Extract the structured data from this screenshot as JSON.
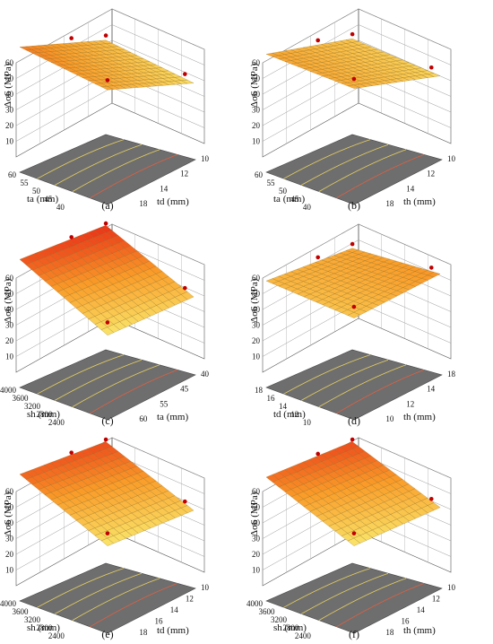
{
  "figure": {
    "panels": [
      {
        "label": "(a)",
        "zlabel": "Δσ6 (MPa)",
        "x_name": "ta",
        "y_name": "td",
        "x_ticks": [
          "60",
          "55",
          "50",
          "45",
          "40"
        ],
        "y_ticks": [
          "10",
          "12",
          "14",
          "18"
        ]
      },
      {
        "label": "(b)",
        "zlabel": "Δσ6 (MPa)",
        "x_name": "ta",
        "y_name": "th",
        "x_ticks": [
          "60",
          "55",
          "50",
          "45",
          "40"
        ],
        "y_ticks": [
          "10",
          "12",
          "14",
          "18"
        ]
      },
      {
        "label": "(c)",
        "zlabel": "Δσ6 (MPa)",
        "x_name": "sh",
        "y_name": "ta",
        "x_ticks": [
          "4000",
          "3600",
          "3200",
          "2800",
          "2400"
        ],
        "y_ticks": [
          "40",
          "45",
          "55",
          "60"
        ]
      },
      {
        "label": "(d)",
        "zlabel": "Δσ6 (MPa)",
        "x_name": "td",
        "y_name": "th",
        "x_ticks": [
          "18",
          "16",
          "14",
          "12",
          "10"
        ],
        "y_ticks": [
          "18",
          "14",
          "12",
          "10"
        ]
      },
      {
        "label": "(e)",
        "zlabel": "Δσ6 (MPa)",
        "x_name": "sh",
        "y_name": "td",
        "x_ticks": [
          "4000",
          "3600",
          "3200",
          "2800",
          "2400"
        ],
        "y_ticks": [
          "10",
          "12",
          "14",
          "16",
          "18"
        ]
      },
      {
        "label": "(f)",
        "zlabel": "Δσ6 (MPa)",
        "x_name": "sh",
        "y_name": "th",
        "x_ticks": [
          "4000",
          "3600",
          "3200",
          "2800",
          "2400"
        ],
        "y_ticks": [
          "10",
          "12",
          "14",
          "16",
          "18"
        ]
      }
    ]
  },
  "chart_data": [
    {
      "type": "surface",
      "label": "(a)",
      "zlabel": "Δσ6 (MPa)",
      "xlabel": "ta (mm)",
      "ylabel": "td (mm)",
      "xlim": [
        40,
        60
      ],
      "ylim": [
        10,
        18
      ],
      "zlim": [
        0,
        60
      ],
      "z_ticks": [
        10,
        20,
        30,
        40,
        50,
        60
      ],
      "corner_values": {
        "ta60_td10": 38,
        "ta60_td18": 24,
        "ta40_td10": 30,
        "ta40_td18": 16
      },
      "design_points_z": [
        42,
        37,
        28,
        20
      ]
    },
    {
      "type": "surface",
      "label": "(b)",
      "zlabel": "Δσ6 (MPa)",
      "xlabel": "ta (mm)",
      "ylabel": "th (mm)",
      "xlim": [
        40,
        60
      ],
      "ylim": [
        10,
        18
      ],
      "zlim": [
        0,
        60
      ],
      "z_ticks": [
        10,
        20,
        30,
        40,
        50,
        60
      ],
      "corner_values": {
        "ta60_th10": 30,
        "ta60_th18": 22,
        "ta40_th10": 28,
        "ta40_th18": 18
      },
      "design_points_z": [
        33,
        31,
        26,
        22
      ]
    },
    {
      "type": "surface",
      "label": "(c)",
      "zlabel": "Δσ6 (MPa)",
      "xlabel": "sh (mm)",
      "ylabel": "ta (mm)",
      "xlim": [
        2400,
        4000
      ],
      "ylim": [
        40,
        60
      ],
      "zlim": [
        0,
        60
      ],
      "z_ticks": [
        10,
        20,
        30,
        40,
        50,
        60
      ],
      "corner_values": {
        "sh4000_ta40": 45,
        "sh4000_ta60": 50,
        "sh2400_ta40": 14,
        "sh2400_ta60": 22
      },
      "design_points_z": [
        52,
        30,
        18,
        12
      ]
    },
    {
      "type": "surface",
      "label": "(d)",
      "zlabel": "Δσ6 (MPa)",
      "xlabel": "td (mm)",
      "ylabel": "th (mm)",
      "xlim": [
        10,
        18
      ],
      "ylim": [
        10,
        18
      ],
      "zlim": [
        0,
        60
      ],
      "z_ticks": [
        10,
        20,
        30,
        40,
        50,
        60
      ],
      "corner_values": {
        "td18_th18": 26,
        "td18_th10": 30,
        "td10_th18": 22,
        "td10_th10": 34
      },
      "design_points_z": [
        32,
        31,
        27,
        22
      ]
    },
    {
      "type": "surface",
      "label": "(e)",
      "zlabel": "Δσ6 (MPa)",
      "xlabel": "sh (mm)",
      "ylabel": "td (mm)",
      "xlim": [
        2400,
        4000
      ],
      "ylim": [
        10,
        18
      ],
      "zlim": [
        0,
        60
      ],
      "z_ticks": [
        10,
        20,
        30,
        40,
        50,
        60
      ],
      "corner_values": {
        "sh4000_td10": 42,
        "sh4000_td18": 46,
        "sh2400_td10": 14,
        "sh2400_td18": 20
      },
      "design_points_z": [
        48,
        32,
        17,
        12
      ]
    },
    {
      "type": "surface",
      "label": "(f)",
      "zlabel": "Δσ6 (MPa)",
      "xlabel": "sh (mm)",
      "ylabel": "th (mm)",
      "xlim": [
        2400,
        4000
      ],
      "ylim": [
        10,
        18
      ],
      "zlim": [
        0,
        60
      ],
      "z_ticks": [
        10,
        20,
        30,
        40,
        50,
        60
      ],
      "corner_values": {
        "sh4000_th10": 40,
        "sh4000_th18": 46,
        "sh2400_th10": 14,
        "sh2400_th18": 22
      },
      "design_points_z": [
        48,
        33,
        18,
        12
      ]
    }
  ]
}
